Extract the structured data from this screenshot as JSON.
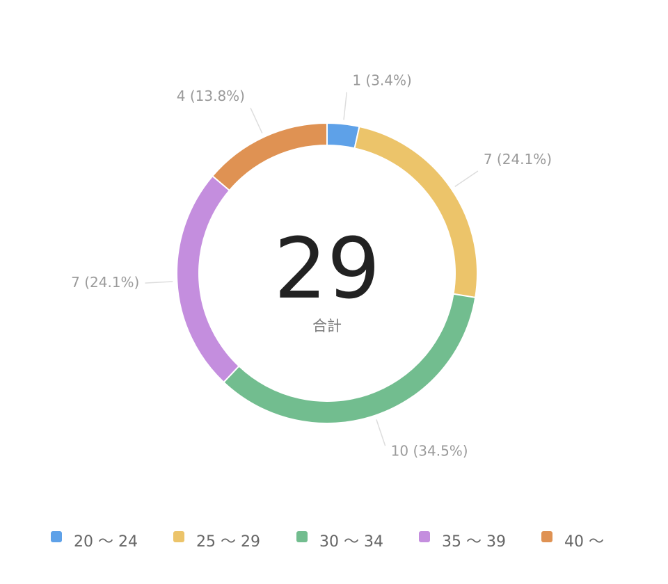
{
  "chart_data": {
    "type": "pie",
    "variant": "donut",
    "center": {
      "total": "29",
      "caption": "合計"
    },
    "categories": [
      "20 〜 24",
      "25 〜 29",
      "30 〜 34",
      "35 〜 39",
      "40 〜"
    ],
    "values": [
      1,
      7,
      10,
      7,
      4
    ],
    "data_labels": [
      "1 (3.4%)",
      "7 (24.1%)",
      "10 (34.5%)",
      "7 (24.1%)",
      "4 (13.8%)"
    ],
    "colors": [
      "#5ea1e8",
      "#ecc46a",
      "#72bd8f",
      "#c48ede",
      "#df9253"
    ],
    "legend_position": "bottom",
    "start_angle_deg": 0,
    "direction": "clockwise"
  }
}
